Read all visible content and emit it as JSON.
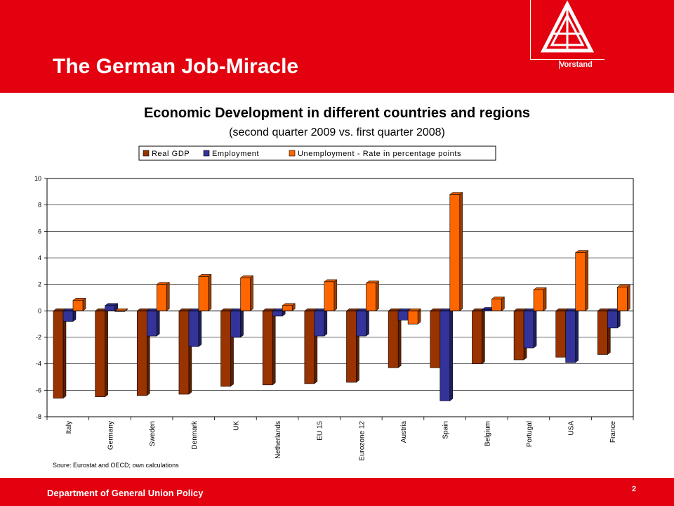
{
  "header": {
    "title": "The German Job-Miracle",
    "org_label": "Vorstand"
  },
  "footer": {
    "department": "Department of General Union Policy",
    "page_number": "2"
  },
  "colors": {
    "brand_red": "#e3000f",
    "gdp": "#993300",
    "employment": "#333399",
    "unemployment": "#ff6600"
  },
  "chart_data": {
    "type": "bar",
    "title": "Economic Development in different countries and regions",
    "subtitle": "(second quarter 2009 vs. first quarter 2008)",
    "categories": [
      "Italy",
      "Germany",
      "Sweden",
      "Denmark",
      "UK",
      "Netherlands",
      "EU 15",
      "Eurozone 12",
      "Austria",
      "Spain",
      "Belgium",
      "Portugal",
      "USA",
      "France"
    ],
    "series": [
      {
        "name": "Real GDP",
        "values": [
          -6.6,
          -6.5,
          -6.4,
          -6.3,
          -5.7,
          -5.6,
          -5.5,
          -5.4,
          -4.3,
          -4.3,
          -4.0,
          -3.7,
          -3.5,
          -3.3
        ]
      },
      {
        "name": "Employment",
        "values": [
          -0.8,
          0.4,
          -1.9,
          -2.7,
          -2.0,
          -0.4,
          -1.9,
          -1.9,
          -0.7,
          -6.8,
          0.1,
          -2.8,
          -3.9,
          -1.3
        ]
      },
      {
        "name": "Unemployment - Rate in percentage points",
        "values": [
          0.8,
          -0.05,
          2.0,
          2.6,
          2.5,
          0.4,
          2.2,
          2.1,
          -1.0,
          8.8,
          0.9,
          1.6,
          4.4,
          1.8
        ]
      }
    ],
    "ylim": [
      -8,
      10
    ],
    "yticks": [
      "-8",
      "-6",
      "-4",
      "-2",
      "0",
      "2",
      "4",
      "6",
      "8",
      "10"
    ],
    "legend_position": "top",
    "grid": true,
    "source": "Soure: Eurostat and OECD; own calculations"
  }
}
